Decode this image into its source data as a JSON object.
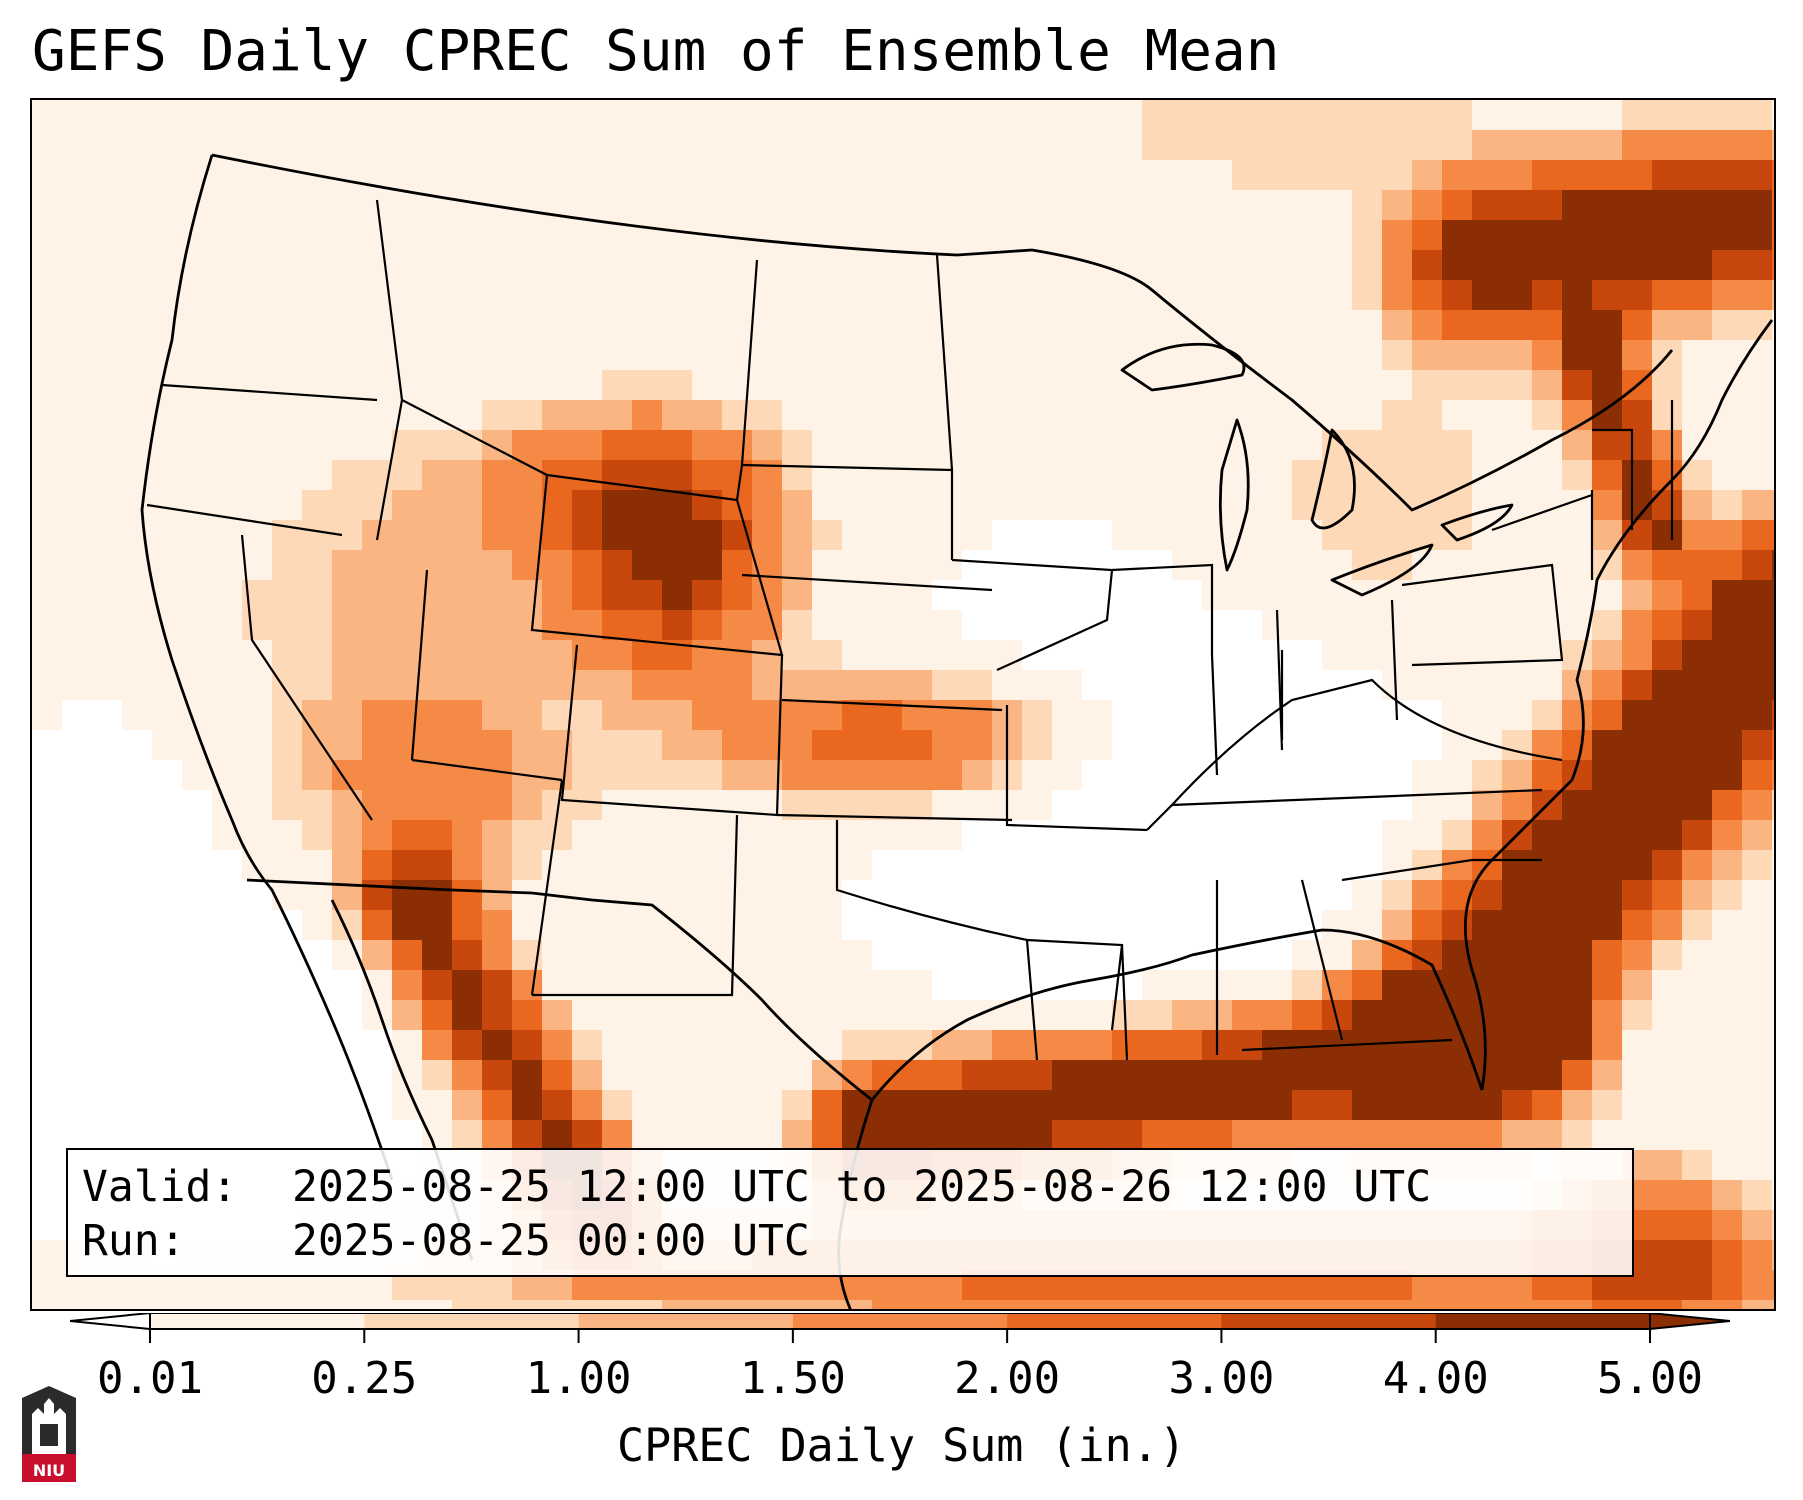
{
  "title": "GEFS Daily CPREC Sum of Ensemble Mean",
  "map": {
    "colors": [
      "#ffffff",
      "#fff3e7",
      "#fdd9b7",
      "#fbb582",
      "#f58a47",
      "#e9671f",
      "#c8470d",
      "#8b2e03"
    ],
    "levels": [
      0.01,
      0.25,
      1.0,
      1.5,
      2.0,
      3.0,
      4.0,
      5.0
    ]
  },
  "info": {
    "valid_key": "Valid:",
    "valid_value": "2025-08-25 12:00 UTC to 2025-08-26 12:00 UTC",
    "run_key": "Run:",
    "run_value": "2025-08-25 00:00 UTC"
  },
  "colorbar": {
    "ticks": [
      "0.01",
      "0.25",
      "1.00",
      "1.50",
      "2.00",
      "3.00",
      "4.00",
      "5.00"
    ],
    "label": "CPREC Daily Sum (in.)"
  },
  "logo": {
    "name": "NIU",
    "color": "#c8102e"
  }
}
